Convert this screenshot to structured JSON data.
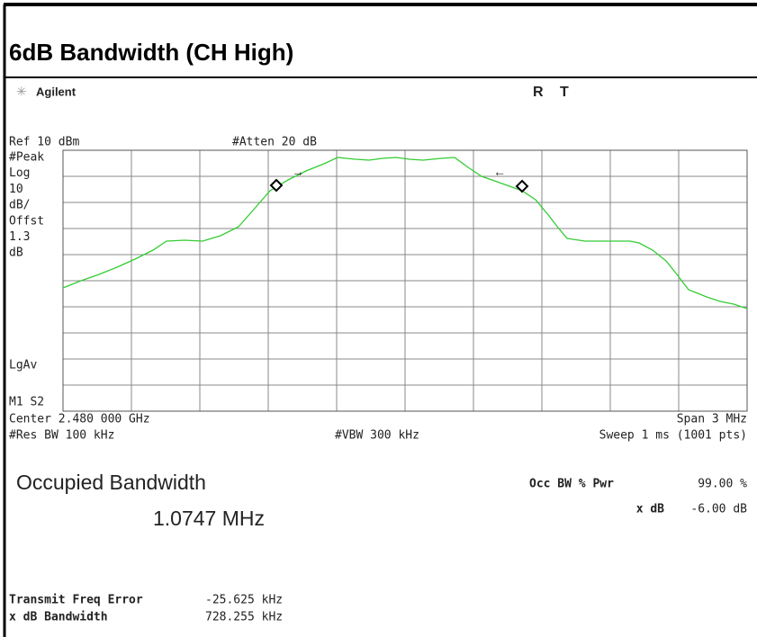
{
  "header": {
    "title": "6dB Bandwidth (CH High)"
  },
  "screen": {
    "brand": "Agilent",
    "status": [
      "R",
      "T"
    ],
    "ref": "Ref 10 dBm",
    "atten": "#Atten 20 dB",
    "left_labels": [
      "#Peak",
      "Log",
      "10",
      "dB/",
      "Offst",
      "1.3",
      "dB"
    ],
    "lgav": "LgAv",
    "marker_label": "M1 S2",
    "center": "Center 2.480 000 GHz",
    "span": "Span 3 MHz",
    "res_bw": "#Res BW 100 kHz",
    "vbw": "#VBW 300 kHz",
    "sweep": "Sweep 1 ms (1001 pts)"
  },
  "results": {
    "occupied_label": "Occupied Bandwidth",
    "occupied_value": "1.0747 MHz",
    "occ_pwr_label": "Occ BW % Pwr",
    "occ_pwr_value": "99.00 %",
    "xdb_label": "x dB",
    "xdb_value": "-6.00 dB",
    "freq_error_label": "Transmit Freq Error",
    "freq_error_value": "-25.625 kHz",
    "xdb_bw_label": "x dB Bandwidth",
    "xdb_bw_value": "728.255 kHz"
  }
}
